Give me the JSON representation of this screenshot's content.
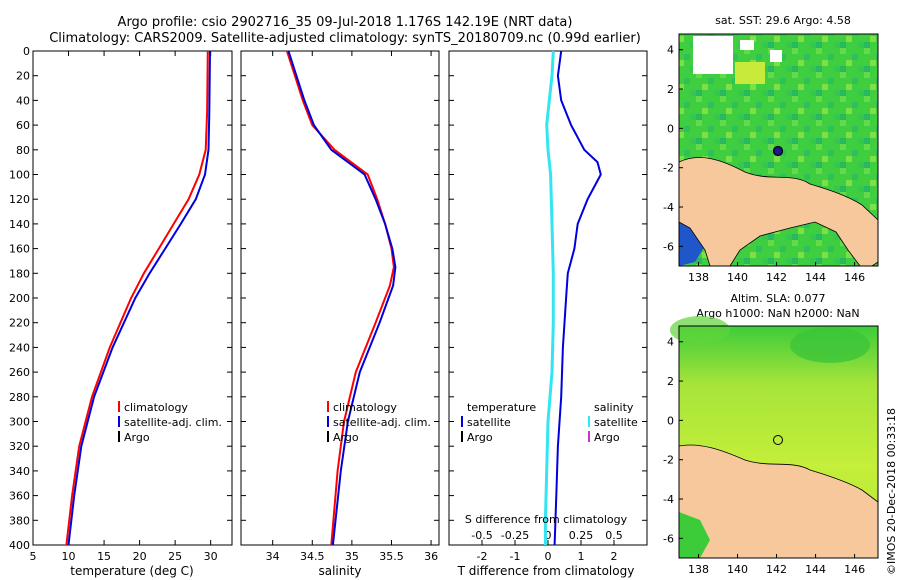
{
  "header": {
    "line1": "Argo profile: csio 2902716_35 09-Jul-2018 1.176S 142.19E (NRT data)",
    "line2": "Climatology: CARS2009. Satellite-adjusted climatology: synTS_20180709.nc (0.99d earlier)"
  },
  "colors": {
    "climatology": "#ff0000",
    "satellite": "#0000dd",
    "argo": "#000000",
    "s_satellite": "#33e5f0",
    "s_argo": "#cc33cc",
    "land": "#f7c89b"
  },
  "chart_data": [
    {
      "type": "line",
      "title": "",
      "xlabel": "temperature (deg C)",
      "ylabel": "",
      "xlim": [
        5,
        33
      ],
      "ylim": [
        0,
        400
      ],
      "y_inverted": true,
      "xticks": [
        "5",
        "10",
        "15",
        "20",
        "25",
        "30"
      ],
      "yticks": [
        "0",
        "20",
        "40",
        "60",
        "80",
        "100",
        "120",
        "140",
        "160",
        "180",
        "200",
        "220",
        "240",
        "260",
        "280",
        "300",
        "320",
        "340",
        "360",
        "380",
        "400"
      ],
      "legend": [
        "climatology",
        "satellite-adj. clim.",
        "Argo"
      ],
      "series": [
        {
          "name": "climatology",
          "color": "#ff0000",
          "depth": [
            0,
            50,
            80,
            100,
            120,
            140,
            160,
            180,
            200,
            240,
            280,
            320,
            360,
            400
          ],
          "values": [
            29.6,
            29.5,
            29.3,
            28.4,
            26.9,
            24.8,
            22.7,
            20.6,
            18.8,
            15.8,
            13.3,
            11.5,
            10.5,
            9.7
          ]
        },
        {
          "name": "satellite-adj. clim.",
          "color": "#0000dd",
          "depth": [
            0,
            50,
            80,
            100,
            120,
            140,
            160,
            180,
            200,
            240,
            280,
            320,
            360,
            400
          ],
          "values": [
            29.9,
            29.8,
            29.7,
            29.2,
            27.9,
            25.8,
            23.6,
            21.4,
            19.4,
            16.2,
            13.6,
            11.8,
            10.8,
            10.0
          ]
        }
      ]
    },
    {
      "type": "line",
      "xlabel": "salinity",
      "xlim": [
        33.6,
        36.1
      ],
      "ylim": [
        0,
        400
      ],
      "y_inverted": true,
      "xticks": [
        "34",
        "34.5",
        "35",
        "35.5",
        "36"
      ],
      "legend": [
        "climatology",
        "satellite-adj. clim.",
        "Argo"
      ],
      "series": [
        {
          "name": "climatology",
          "color": "#ff0000",
          "depth": [
            0,
            20,
            40,
            60,
            80,
            100,
            120,
            140,
            160,
            175,
            190,
            220,
            260,
            300,
            340,
            400
          ],
          "values": [
            34.18,
            34.28,
            34.38,
            34.5,
            34.78,
            35.2,
            35.32,
            35.42,
            35.5,
            35.53,
            35.48,
            35.3,
            35.05,
            34.9,
            34.82,
            34.74
          ]
        },
        {
          "name": "satellite-adj. clim.",
          "color": "#0000dd",
          "depth": [
            0,
            20,
            40,
            60,
            80,
            100,
            120,
            140,
            160,
            175,
            190,
            220,
            260,
            300,
            340,
            400
          ],
          "values": [
            34.2,
            34.3,
            34.4,
            34.52,
            34.74,
            35.16,
            35.3,
            35.42,
            35.51,
            35.55,
            35.52,
            35.35,
            35.1,
            34.95,
            34.86,
            34.76
          ]
        }
      ]
    },
    {
      "type": "line",
      "xlabel": "T difference from climatology",
      "xlabel2": "S difference from climatology",
      "xlim": [
        -3,
        3
      ],
      "ylim": [
        0,
        400
      ],
      "y_inverted": true,
      "xticks": [
        "-2",
        "-1",
        "0",
        "1",
        "2"
      ],
      "xticks_s": [
        "-0.5",
        "-0.25",
        "0",
        "0.25",
        "0.5"
      ],
      "legend_temperature": {
        "title": "temperature",
        "items": [
          "satellite",
          "Argo"
        ]
      },
      "legend_salinity": {
        "title": "salinity",
        "items": [
          "satellite",
          "Argo"
        ]
      },
      "series": [
        {
          "name": "temperature satellite",
          "color": "#0000dd",
          "depth": [
            0,
            20,
            40,
            60,
            80,
            90,
            100,
            110,
            120,
            140,
            160,
            180,
            200,
            240,
            280,
            320,
            360,
            400
          ],
          "values": [
            0.4,
            0.3,
            0.4,
            0.7,
            1.1,
            1.5,
            1.6,
            1.4,
            1.2,
            0.9,
            0.8,
            0.6,
            0.55,
            0.45,
            0.4,
            0.3,
            0.25,
            0.2
          ]
        },
        {
          "name": "salinity satellite",
          "color": "#33e5f0",
          "depth": [
            0,
            20,
            40,
            60,
            80,
            100,
            140,
            180,
            220,
            260,
            300,
            340,
            380,
            400
          ],
          "values": [
            0.04,
            0.03,
            0.01,
            -0.01,
            0.0,
            0.02,
            0.03,
            0.04,
            0.04,
            0.03,
            0.0,
            -0.01,
            -0.02,
            -0.02
          ]
        }
      ]
    }
  ],
  "maps": {
    "sst_title": "sat. SST: 29.6 Argo: 4.58",
    "sla_title_1": "Altim. SLA: 0.077",
    "sla_title_2": "Argo h1000: NaN h2000: NaN",
    "xticks": [
      "138",
      "140",
      "142",
      "144",
      "146"
    ],
    "yticks": [
      "4",
      "2",
      "0",
      "-2",
      "-4",
      "-6"
    ],
    "xlim": [
      137,
      147.2
    ],
    "ylim": [
      -7,
      4.8
    ],
    "argo_position": {
      "lon": 142.19,
      "lat": -1.176
    }
  },
  "watermark": "©IMOS 20-Dec-2018 00:33:18"
}
